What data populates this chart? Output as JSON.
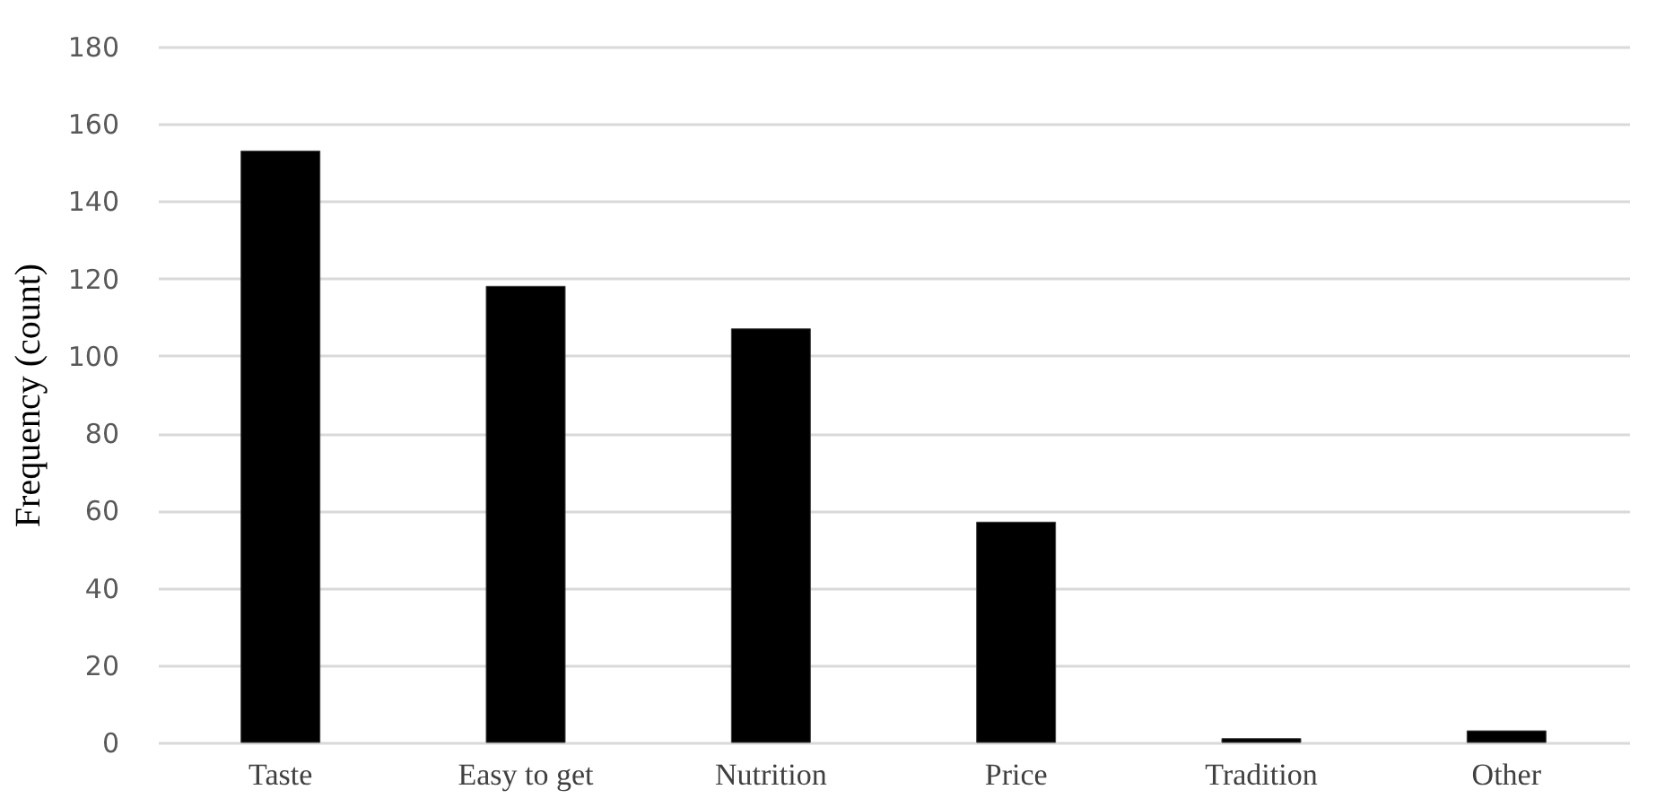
{
  "chart_data": {
    "type": "bar",
    "ylabel": "Frequency (count)",
    "categories": [
      "Taste",
      "Easy to get",
      "Nutrition",
      "Price",
      "Tradition",
      "Other"
    ],
    "values": [
      153,
      118,
      107,
      57,
      1,
      3
    ],
    "color": "#000000",
    "ylim": [
      0,
      180
    ],
    "yticks": [
      0,
      20,
      40,
      60,
      80,
      100,
      120,
      140,
      160,
      180
    ],
    "grid": "y"
  }
}
